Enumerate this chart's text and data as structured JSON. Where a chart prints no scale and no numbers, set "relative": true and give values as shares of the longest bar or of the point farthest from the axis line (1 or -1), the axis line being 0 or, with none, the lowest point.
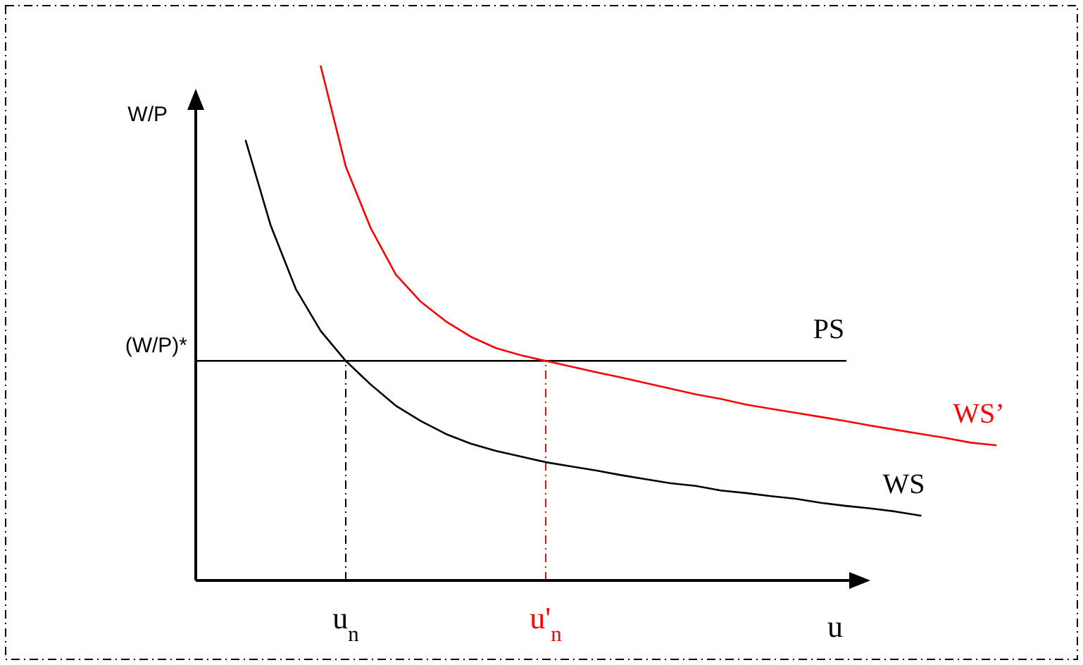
{
  "chart_data": {
    "type": "line",
    "ylabel": "W/P",
    "xlabel": "u",
    "relative": true,
    "categories": [
      null,
      null,
      null,
      null,
      null,
      null,
      "u$_{n}$",
      null,
      null,
      null,
      null,
      null,
      null,
      null,
      "u'$_{n}$",
      null,
      null,
      null,
      null,
      null,
      null,
      null,
      null,
      null,
      null,
      null,
      null,
      null,
      null,
      null,
      null,
      null,
      null
    ],
    "series": [
      {
        "name": "PS",
        "color": "#000000",
        "values": [
          0.427,
          0.427,
          0.427,
          0.427,
          0.427,
          0.427,
          0.427,
          0.427,
          0.427,
          0.427,
          0.427,
          0.427,
          0.427,
          0.427,
          0.427,
          0.427,
          0.427,
          0.427,
          0.427,
          0.427,
          0.427,
          0.427,
          0.427,
          0.427,
          0.427,
          0.427,
          0.427,
          null,
          null,
          null,
          null,
          null,
          null
        ]
      },
      {
        "name": "WS",
        "color": "#000000",
        "values": [
          null,
          null,
          0.855,
          0.69,
          0.567,
          0.485,
          0.427,
          0.381,
          0.34,
          0.31,
          0.285,
          0.266,
          0.252,
          0.241,
          0.23,
          0.222,
          0.214,
          0.205,
          0.197,
          0.189,
          0.184,
          0.175,
          0.17,
          0.164,
          0.159,
          0.151,
          0.145,
          0.14,
          0.134,
          0.126,
          null,
          null,
          null
        ]
      },
      {
        "name": "WS’",
        "color": "#ff0000",
        "values": [
          null,
          null,
          null,
          null,
          null,
          1,
          0.805,
          0.685,
          0.595,
          0.542,
          0.504,
          0.474,
          0.452,
          0.438,
          0.427,
          0.416,
          0.405,
          0.395,
          0.384,
          0.373,
          0.362,
          0.353,
          0.342,
          0.334,
          0.326,
          0.318,
          0.31,
          0.301,
          0.293,
          0.285,
          0.277,
          0.268,
          0.263
        ]
      }
    ],
    "annotations": [
      "(W/P)*"
    ],
    "ref_lines": [
      {
        "axis": "x",
        "value": "u$_{n}$",
        "color": "#000000",
        "line_style": "dashed"
      },
      {
        "axis": "x",
        "value": "u'$_{n}$",
        "color": "#ff0000",
        "line_style": "dashed"
      }
    ],
    "grid": false,
    "marker": "none",
    "line_style": "solid"
  }
}
